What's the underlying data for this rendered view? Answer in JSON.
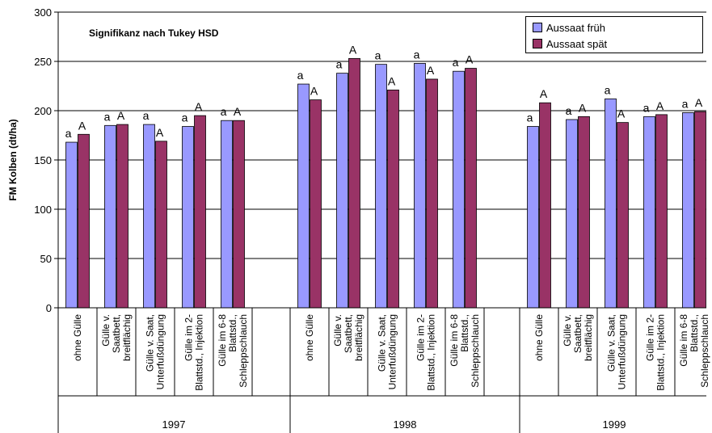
{
  "chart_data": {
    "type": "bar",
    "title": "Signifikanz nach Tukey HSD",
    "ylabel": "FM Kolben (dt/ha)",
    "xlabel": "",
    "ylim": [
      0,
      300
    ],
    "yticks": [
      0,
      50,
      100,
      150,
      200,
      250,
      300
    ],
    "grid": true,
    "legend_position": "top-right",
    "colors": {
      "early": "#9999FF",
      "late": "#993366"
    },
    "series": [
      {
        "name": "Aussaat früh"
      },
      {
        "name": "Aussaat spät"
      }
    ],
    "categories": [
      "ohne Gülle",
      "Gülle v. Saatbett, breitflächig",
      "Gülle v. Saat, Unterfußdüngung",
      "Gülle im 2-Blattstd., Injektion",
      "Gülle im 6-8 Blattstd., Schleppschlauch"
    ],
    "category_label_lines": [
      [
        "ohne Gülle"
      ],
      [
        "Gülle v.",
        "Saatbett,",
        "breitflächig"
      ],
      [
        "Gülle v. Saat,",
        "Unterfußdüngung"
      ],
      [
        "Gülle im 2-",
        "Blattstd., Injektion"
      ],
      [
        "Gülle im 6-8",
        "Blattstd.,",
        "Schleppschlauch"
      ]
    ],
    "groups": [
      {
        "year": "1997",
        "early": [
          168,
          185,
          186,
          184,
          190
        ],
        "late": [
          176,
          186,
          169,
          195,
          190
        ],
        "early_labels": [
          "a",
          "a",
          "a",
          "a",
          "a"
        ],
        "late_labels": [
          "A",
          "A",
          "A",
          "A",
          "A"
        ]
      },
      {
        "year": "1998",
        "early": [
          227,
          238,
          247,
          248,
          240
        ],
        "late": [
          211,
          253,
          221,
          232,
          243
        ],
        "early_labels": [
          "a",
          "a",
          "a",
          "a",
          "a"
        ],
        "late_labels": [
          "A",
          "A",
          "A",
          "A",
          "A"
        ]
      },
      {
        "year": "1999",
        "early": [
          184,
          191,
          212,
          194,
          198
        ],
        "late": [
          208,
          194,
          188,
          196,
          199
        ],
        "early_labels": [
          "a",
          "a",
          "a",
          "a",
          "a"
        ],
        "late_labels": [
          "A",
          "A",
          "A",
          "A",
          "A"
        ]
      }
    ]
  }
}
